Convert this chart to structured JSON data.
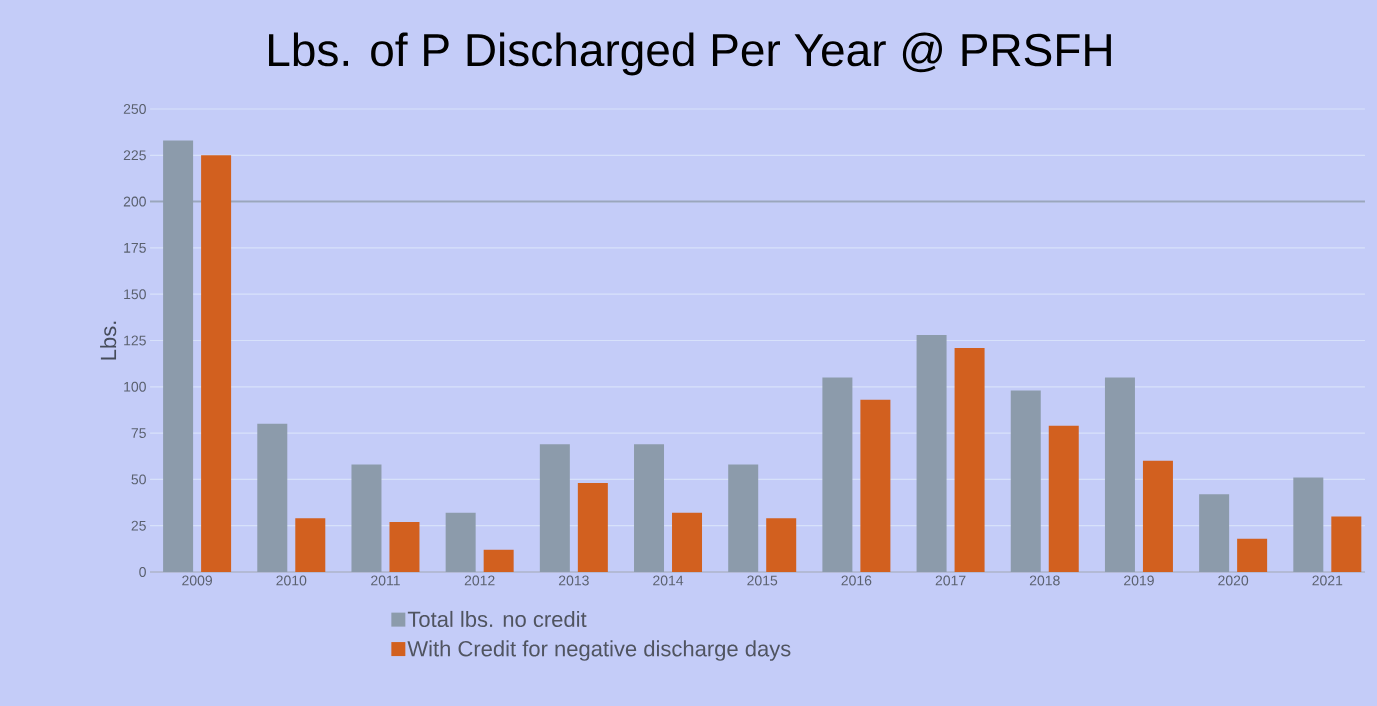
{
  "chart_data": {
    "type": "bar",
    "title": "Lbs. of P Discharged Per Year @ PRSFH",
    "ylabel": "Lbs.",
    "categories": [
      "2009",
      "2010",
      "2011",
      "2012",
      "2013",
      "2014",
      "2015",
      "2016",
      "2017",
      "2018",
      "2019",
      "2020",
      "2021"
    ],
    "series": [
      {
        "name": "Total lbs. no credit",
        "color": "#8c9bab",
        "values": [
          233,
          80,
          58,
          32,
          69,
          69,
          58,
          105,
          128,
          98,
          105,
          42,
          51
        ]
      },
      {
        "name": "With Credit for negative discharge days",
        "color": "#d2601f",
        "values": [
          225,
          29,
          27,
          12,
          48,
          32,
          29,
          93,
          121,
          79,
          60,
          18,
          30
        ]
      }
    ],
    "ylim": [
      0,
      250
    ],
    "yticks": [
      0,
      25,
      50,
      75,
      100,
      125,
      150,
      175,
      200,
      225,
      250
    ],
    "grid": "y",
    "legend": "bottom",
    "ref_lines": [
      {
        "axis": "y",
        "value": 200,
        "color": "#9aa6bc"
      }
    ]
  }
}
